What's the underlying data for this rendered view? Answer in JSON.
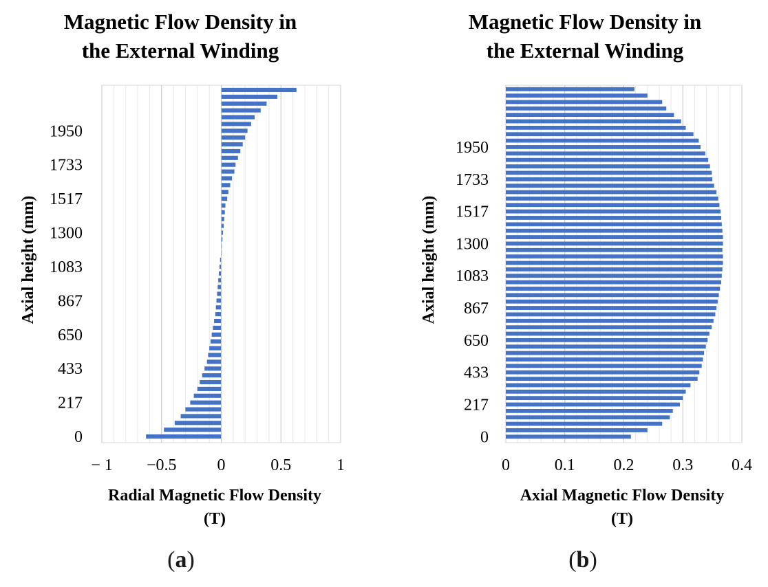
{
  "chart_data": [
    {
      "type": "bar",
      "orientation": "horizontal",
      "title": [
        "Magnetic Flow Density in",
        "the External Winding"
      ],
      "xlabel": [
        "Radial Magnetic Flow Density",
        "(T)"
      ],
      "ylabel": "Axial height (mm)",
      "xlim": [
        -1,
        1
      ],
      "xticks": [
        -1,
        -0.5,
        0,
        0.5,
        1
      ],
      "xtick_labels": [
        "− 1",
        "−0.5",
        "0",
        "0.5",
        "1"
      ],
      "ytick_labels": [
        "0",
        "217",
        "433",
        "650",
        "867",
        "1083",
        "1300",
        "1517",
        "1733",
        "1950"
      ],
      "ytick_every": 5,
      "grid": "vertical minor",
      "bar_color": "#4472c4",
      "values": [
        -0.63,
        -0.48,
        -0.39,
        -0.34,
        -0.3,
        -0.26,
        -0.23,
        -0.2,
        -0.18,
        -0.16,
        -0.14,
        -0.12,
        -0.11,
        -0.1,
        -0.09,
        -0.08,
        -0.07,
        -0.06,
        -0.05,
        -0.045,
        -0.04,
        -0.035,
        -0.03,
        -0.025,
        -0.02,
        -0.015,
        -0.01,
        0.0,
        0.005,
        0.01,
        0.015,
        0.02,
        0.025,
        0.03,
        0.035,
        0.05,
        0.06,
        0.075,
        0.09,
        0.11,
        0.12,
        0.14,
        0.16,
        0.18,
        0.2,
        0.22,
        0.25,
        0.28,
        0.33,
        0.38,
        0.47,
        0.63
      ],
      "caption": "a"
    },
    {
      "type": "bar",
      "orientation": "horizontal",
      "title": [
        "Magnetic Flow Density in",
        "the External Winding"
      ],
      "xlabel": [
        "Axial Magnetic Flow Density",
        "(T)"
      ],
      "ylabel": "Axial height (mm)",
      "xlim": [
        0,
        0.4
      ],
      "xticks": [
        0,
        0.1,
        0.2,
        0.3,
        0.4
      ],
      "xtick_labels": [
        "0",
        "0.1",
        "0.2",
        "0.3",
        "0.4"
      ],
      "ytick_labels": [
        "0",
        "217",
        "433",
        "650",
        "867",
        "1083",
        "1300",
        "1517",
        "1733",
        "1950"
      ],
      "ytick_every": 5,
      "grid": "vertical minor",
      "bar_color": "#4472c4",
      "values": [
        0.212,
        0.24,
        0.265,
        0.278,
        0.283,
        0.295,
        0.3,
        0.305,
        0.313,
        0.325,
        0.328,
        0.332,
        0.334,
        0.336,
        0.339,
        0.342,
        0.345,
        0.349,
        0.352,
        0.355,
        0.357,
        0.359,
        0.361,
        0.363,
        0.365,
        0.366,
        0.367,
        0.368,
        0.368,
        0.367,
        0.368,
        0.368,
        0.367,
        0.366,
        0.365,
        0.364,
        0.362,
        0.36,
        0.357,
        0.353,
        0.35,
        0.349,
        0.346,
        0.343,
        0.338,
        0.33,
        0.327,
        0.318,
        0.305,
        0.297,
        0.285,
        0.272,
        0.265,
        0.24,
        0.218
      ],
      "caption": "b"
    }
  ]
}
